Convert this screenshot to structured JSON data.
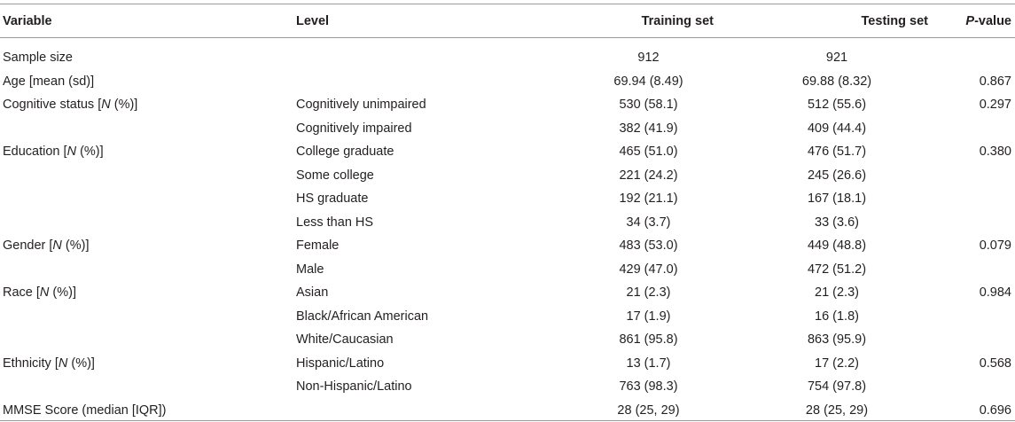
{
  "headers": {
    "variable": "Variable",
    "level": "Level",
    "training": "Training set",
    "testing": "Testing set",
    "pvalue_italic": "P",
    "pvalue_rest": "-value"
  },
  "rows": [
    {
      "variable_pre": "Sample size",
      "variable_it": "",
      "variable_post": "",
      "level": "",
      "training": "912",
      "testing": "921",
      "pvalue": ""
    },
    {
      "variable_pre": "Age [mean (sd)]",
      "variable_it": "",
      "variable_post": "",
      "level": "",
      "training": "69.94 (8.49)",
      "testing": "69.88 (8.32)",
      "pvalue": "0.867"
    },
    {
      "variable_pre": "Cognitive status [",
      "variable_it": "N",
      "variable_post": " (%)]",
      "level": "Cognitively unimpaired",
      "training": "530 (58.1)",
      "testing": "512 (55.6)",
      "pvalue": "0.297"
    },
    {
      "variable_pre": "",
      "variable_it": "",
      "variable_post": "",
      "level": "Cognitively impaired",
      "training": "382 (41.9)",
      "testing": "409 (44.4)",
      "pvalue": ""
    },
    {
      "variable_pre": "Education [",
      "variable_it": "N",
      "variable_post": " (%)]",
      "level": "College graduate",
      "training": "465 (51.0)",
      "testing": "476 (51.7)",
      "pvalue": "0.380"
    },
    {
      "variable_pre": "",
      "variable_it": "",
      "variable_post": "",
      "level": "Some college",
      "training": "221 (24.2)",
      "testing": "245 (26.6)",
      "pvalue": ""
    },
    {
      "variable_pre": "",
      "variable_it": "",
      "variable_post": "",
      "level": "HS graduate",
      "training": "192 (21.1)",
      "testing": "167 (18.1)",
      "pvalue": ""
    },
    {
      "variable_pre": "",
      "variable_it": "",
      "variable_post": "",
      "level": "Less than HS",
      "training": "34 (3.7)",
      "testing": "33 (3.6)",
      "pvalue": ""
    },
    {
      "variable_pre": "Gender [",
      "variable_it": "N",
      "variable_post": " (%)]",
      "level": "Female",
      "training": "483 (53.0)",
      "testing": "449 (48.8)",
      "pvalue": "0.079"
    },
    {
      "variable_pre": "",
      "variable_it": "",
      "variable_post": "",
      "level": "Male",
      "training": "429 (47.0)",
      "testing": "472 (51.2)",
      "pvalue": ""
    },
    {
      "variable_pre": "Race [",
      "variable_it": "N",
      "variable_post": " (%)]",
      "level": "Asian",
      "training": "21 (2.3)",
      "testing": "21 (2.3)",
      "pvalue": "0.984"
    },
    {
      "variable_pre": "",
      "variable_it": "",
      "variable_post": "",
      "level": "Black/African American",
      "training": "17 (1.9)",
      "testing": "16 (1.8)",
      "pvalue": ""
    },
    {
      "variable_pre": "",
      "variable_it": "",
      "variable_post": "",
      "level": "White/Caucasian",
      "training": "861 (95.8)",
      "testing": "863 (95.9)",
      "pvalue": ""
    },
    {
      "variable_pre": "Ethnicity [",
      "variable_it": "N",
      "variable_post": " (%)]",
      "level": "Hispanic/Latino",
      "training": "13 (1.7)",
      "testing": "17 (2.2)",
      "pvalue": "0.568"
    },
    {
      "variable_pre": "",
      "variable_it": "",
      "variable_post": "",
      "level": "Non-Hispanic/Latino",
      "training": "763 (98.3)",
      "testing": "754 (97.8)",
      "pvalue": ""
    },
    {
      "variable_pre": "MMSE Score (median [IQR])",
      "variable_it": "",
      "variable_post": "",
      "level": "",
      "training": "28 (25, 29)",
      "testing": "28 (25, 29)",
      "pvalue": "0.696"
    }
  ]
}
